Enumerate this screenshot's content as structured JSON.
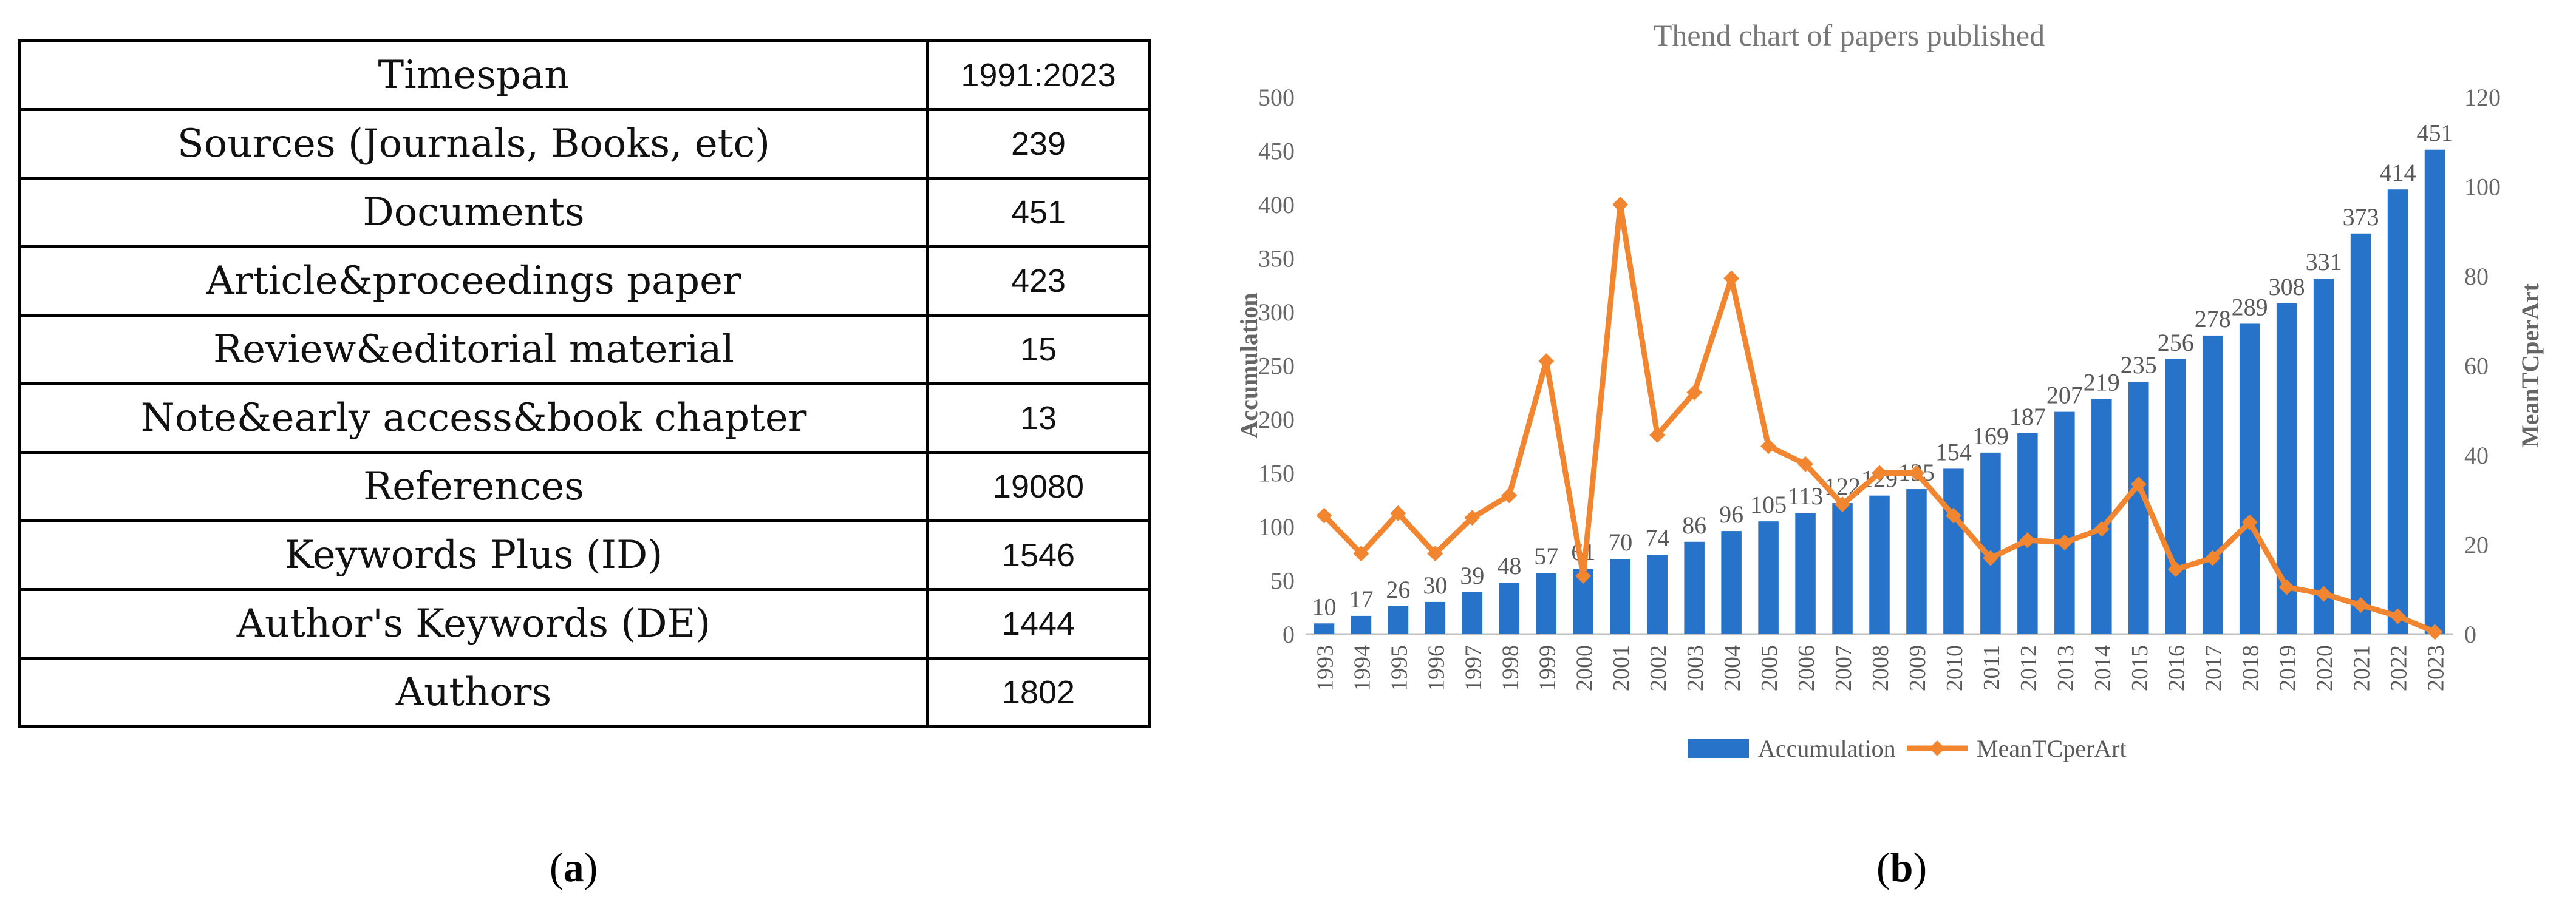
{
  "table": {
    "rows": [
      {
        "label": "Timespan",
        "value": "1991:2023"
      },
      {
        "label": "Sources (Journals, Books, etc)",
        "value": "239"
      },
      {
        "label": "Documents",
        "value": "451"
      },
      {
        "label": "Article&proceedings paper",
        "value": "423"
      },
      {
        "label": "Review&editorial material",
        "value": "15"
      },
      {
        "label": "Note&early access&book chapter",
        "value": "13"
      },
      {
        "label": "References",
        "value": "19080"
      },
      {
        "label": "Keywords Plus (ID)",
        "value": "1546"
      },
      {
        "label": "Author's Keywords (DE)",
        "value": "1444"
      },
      {
        "label": "Authors",
        "value": "1802"
      }
    ]
  },
  "captions": {
    "a": "a",
    "b": "b"
  },
  "colors": {
    "bar": "#2673C9",
    "line": "#F28630"
  },
  "chart_data": {
    "type": "bar+line",
    "title": "Thend chart of papers published",
    "categories": [
      "1993",
      "1994",
      "1995",
      "1996",
      "1997",
      "1998",
      "1999",
      "2000",
      "2001",
      "2002",
      "2003",
      "2004",
      "2005",
      "2006",
      "2007",
      "2008",
      "2009",
      "2010",
      "2011",
      "2012",
      "2013",
      "2014",
      "2015",
      "2016",
      "2017",
      "2018",
      "2019",
      "2020",
      "2021",
      "2022",
      "2023"
    ],
    "series": [
      {
        "name": "Accumulation",
        "type": "bar",
        "axis": "left",
        "values": [
          10,
          17,
          26,
          30,
          39,
          48,
          57,
          61,
          70,
          74,
          86,
          96,
          105,
          113,
          122,
          129,
          135,
          154,
          169,
          187,
          207,
          219,
          235,
          256,
          278,
          289,
          308,
          331,
          373,
          414,
          451
        ]
      },
      {
        "name": "MeanTCperArt",
        "type": "line",
        "axis": "right",
        "values": [
          26.5,
          18,
          27,
          18,
          26,
          31,
          61,
          13,
          96,
          44.5,
          54,
          79.5,
          42,
          38,
          29,
          36,
          36,
          26.5,
          17,
          21,
          20.5,
          23.5,
          33.5,
          14.5,
          17,
          25,
          10.5,
          9,
          6.5,
          4,
          0.5
        ]
      }
    ],
    "ylabel_left": "Accumulation",
    "ylabel_right": "MeanTCperArt",
    "ylim_left": [
      0,
      500
    ],
    "ylim_right": [
      0,
      120
    ],
    "yticks_left": [
      "0",
      "50",
      "100",
      "150",
      "200",
      "250",
      "300",
      "350",
      "400",
      "450",
      "500"
    ],
    "yticks_right": [
      "0",
      "20",
      "40",
      "60",
      "80",
      "100",
      "120"
    ],
    "legend": [
      "Accumulation",
      "MeanTCperArt"
    ],
    "legend_position": "bottom"
  }
}
